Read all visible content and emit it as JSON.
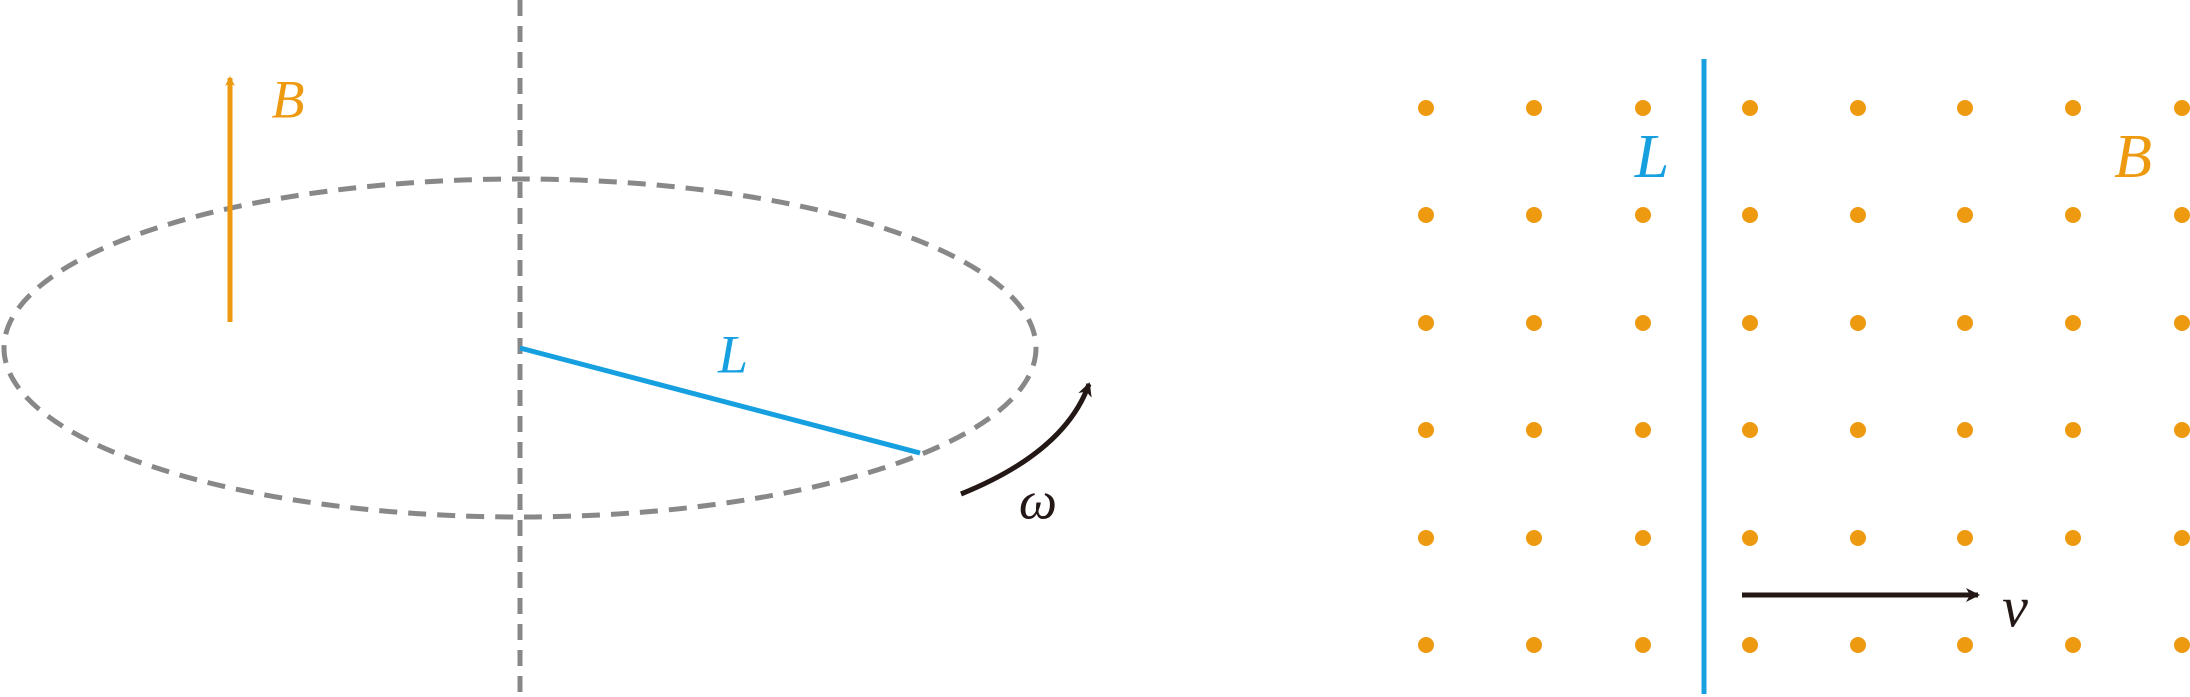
{
  "left": {
    "field_label": "B",
    "rod_label": "L",
    "omega_label": "ω"
  },
  "right": {
    "rod_label": "L",
    "field_label": "B",
    "velocity_label": "v"
  }
}
